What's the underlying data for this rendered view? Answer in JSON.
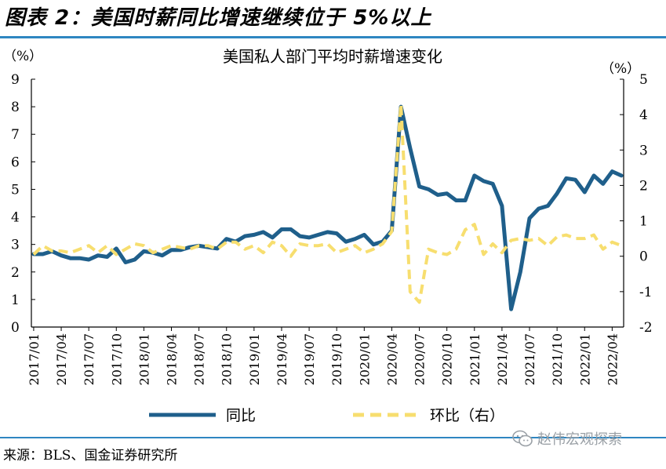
{
  "figure_title": "图表 2：美国时薪同比增速继续位于 5%以上",
  "source": "来源：BLS、国金证券研究所",
  "watermark": "赵伟宏观探索",
  "colors": {
    "yoy": "#1f5f8b",
    "mom": "#f7de6f",
    "rule": "#2e86c1"
  },
  "chart_data": {
    "type": "line",
    "title": "美国私人部门平均时薪增速变化",
    "left_unit": "（%）",
    "right_unit": "（%）",
    "y_left": {
      "min": 0,
      "max": 9,
      "ticks": [
        "0",
        "1",
        "2",
        "3",
        "4",
        "5",
        "6",
        "7",
        "8",
        "9"
      ]
    },
    "y_right": {
      "min": -2,
      "max": 5,
      "ticks": [
        "-2",
        "-1",
        "0",
        "1",
        "2",
        "3",
        "4",
        "5"
      ]
    },
    "x_ticks": [
      "2017/01",
      "2017/04",
      "2017/07",
      "2017/10",
      "2018/01",
      "2018/04",
      "2018/07",
      "2018/10",
      "2019/01",
      "2019/04",
      "2019/07",
      "2019/10",
      "2020/01",
      "2020/04",
      "2020/07",
      "2020/10",
      "2021/01",
      "2021/04",
      "2021/07",
      "2021/10",
      "2022/01",
      "2022/04"
    ],
    "x": [
      "2017/01",
      "2017/02",
      "2017/03",
      "2017/04",
      "2017/05",
      "2017/06",
      "2017/07",
      "2017/08",
      "2017/09",
      "2017/10",
      "2017/11",
      "2017/12",
      "2018/01",
      "2018/02",
      "2018/03",
      "2018/04",
      "2018/05",
      "2018/06",
      "2018/07",
      "2018/08",
      "2018/09",
      "2018/10",
      "2018/11",
      "2018/12",
      "2019/01",
      "2019/02",
      "2019/03",
      "2019/04",
      "2019/05",
      "2019/06",
      "2019/07",
      "2019/08",
      "2019/09",
      "2019/10",
      "2019/11",
      "2019/12",
      "2020/01",
      "2020/02",
      "2020/03",
      "2020/04",
      "2020/05",
      "2020/06",
      "2020/07",
      "2020/08",
      "2020/09",
      "2020/10",
      "2020/11",
      "2020/12",
      "2021/01",
      "2021/02",
      "2021/03",
      "2021/04",
      "2021/05",
      "2021/06",
      "2021/07",
      "2021/08",
      "2021/09",
      "2021/10",
      "2021/11",
      "2021/12",
      "2022/01",
      "2022/02",
      "2022/03",
      "2022/04",
      "2022/05"
    ],
    "series": [
      {
        "name": "同比",
        "axis": "left",
        "style": "solid",
        "values": [
          2.65,
          2.65,
          2.75,
          2.6,
          2.5,
          2.5,
          2.45,
          2.6,
          2.55,
          2.85,
          2.35,
          2.45,
          2.75,
          2.7,
          2.6,
          2.8,
          2.8,
          2.9,
          2.95,
          2.9,
          2.85,
          3.2,
          3.1,
          3.3,
          3.35,
          3.45,
          3.25,
          3.55,
          3.55,
          3.3,
          3.25,
          3.35,
          3.45,
          3.4,
          3.1,
          3.2,
          3.35,
          3.0,
          3.1,
          3.5,
          8.0,
          6.5,
          5.1,
          5.0,
          4.8,
          4.85,
          4.6,
          4.6,
          5.5,
          5.3,
          5.2,
          4.4,
          0.65,
          2.0,
          3.95,
          4.3,
          4.4,
          4.85,
          5.4,
          5.35,
          4.9,
          5.5,
          5.2,
          5.65,
          5.5
        ]
      },
      {
        "name": "环比（右）",
        "axis": "right",
        "style": "dashed",
        "values": [
          0.05,
          0.3,
          0.15,
          0.15,
          0.1,
          0.2,
          0.3,
          0.1,
          0.3,
          0.05,
          0.2,
          0.35,
          0.3,
          0.1,
          0.2,
          0.3,
          0.25,
          0.2,
          0.3,
          0.3,
          0.2,
          0.4,
          0.4,
          0.2,
          0.3,
          0.1,
          0.4,
          0.3,
          0.0,
          0.35,
          0.3,
          0.3,
          0.35,
          0.1,
          0.2,
          0.3,
          0.1,
          0.2,
          0.35,
          0.7,
          4.3,
          -1.0,
          -1.3,
          0.2,
          0.1,
          0.05,
          0.2,
          0.75,
          0.9,
          0.05,
          0.35,
          0.1,
          0.45,
          0.5,
          0.45,
          0.5,
          0.3,
          0.55,
          0.6,
          0.5,
          0.5,
          0.6,
          0.2,
          0.4,
          0.3
        ]
      }
    ],
    "legend": [
      {
        "label": "同比",
        "style": "solid"
      },
      {
        "label": "环比（右）",
        "style": "dashed"
      }
    ],
    "legend_position": "bottom"
  }
}
